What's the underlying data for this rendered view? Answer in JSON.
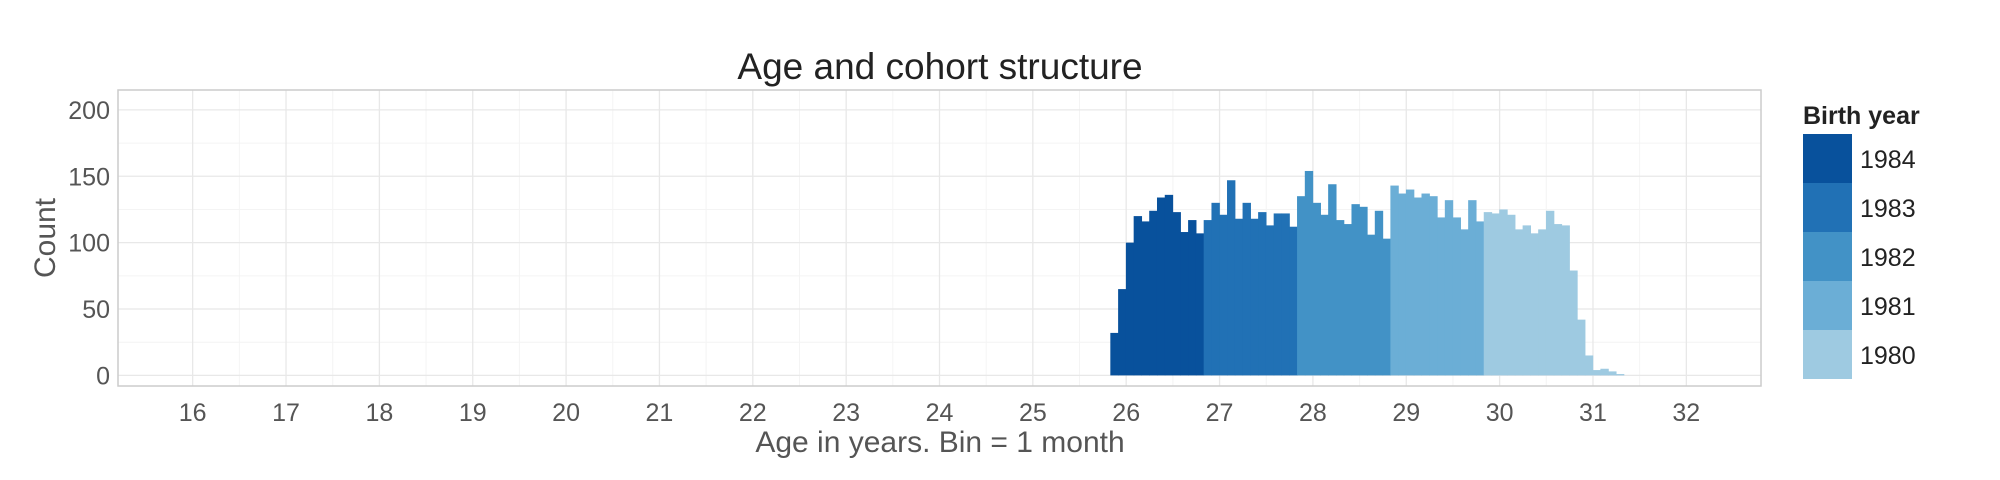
{
  "chart_data": {
    "type": "histogram",
    "title": "Age and cohort structure",
    "xlabel": "Age in years. Bin = 1 month",
    "ylabel": "Count",
    "xlim": [
      15.2,
      32.8
    ],
    "ylim": [
      -8,
      215
    ],
    "x_ticks": [
      "16",
      "17",
      "18",
      "19",
      "20",
      "21",
      "22",
      "23",
      "24",
      "25",
      "26",
      "27",
      "28",
      "29",
      "30",
      "31",
      "32"
    ],
    "y_ticks": [
      "0",
      "50",
      "100",
      "150",
      "200"
    ],
    "bin_width_years": 0.0833,
    "grid": true,
    "legend": {
      "title": "Birth year",
      "position": "right",
      "entries": [
        "1984",
        "1983",
        "1982",
        "1981",
        "1980"
      ]
    },
    "series": [
      {
        "name": "1984",
        "color": "#08519c",
        "start_age": 25.83,
        "values": [
          32,
          65,
          100,
          120,
          116,
          124,
          134,
          136,
          123,
          108,
          117,
          107
        ]
      },
      {
        "name": "1983",
        "color": "#2171b5",
        "start_age": 26.83,
        "values": [
          117,
          130,
          121,
          147,
          118,
          130,
          118,
          123,
          113,
          122,
          122,
          112
        ]
      },
      {
        "name": "1982",
        "color": "#4292c6",
        "start_age": 27.83,
        "values": [
          135,
          154,
          130,
          121,
          144,
          117,
          114,
          129,
          127,
          106,
          124,
          103
        ]
      },
      {
        "name": "1981",
        "color": "#6baed6",
        "start_age": 28.83,
        "values": [
          143,
          137,
          140,
          134,
          137,
          135,
          119,
          132,
          119,
          110,
          132,
          116
        ]
      },
      {
        "name": "1980",
        "color": "#9ecae1",
        "start_age": 29.83,
        "values": [
          123,
          122,
          125,
          121,
          110,
          113,
          107,
          110,
          124,
          114,
          113,
          79,
          42,
          15,
          4,
          5,
          3,
          1
        ]
      }
    ]
  }
}
